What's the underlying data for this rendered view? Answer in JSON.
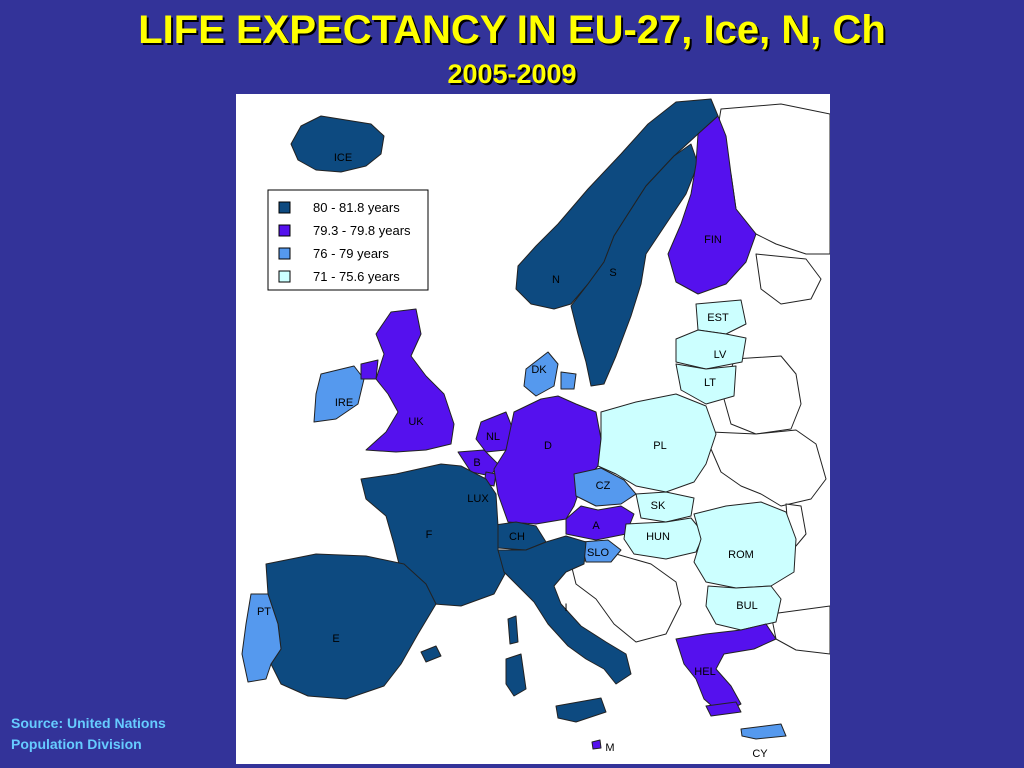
{
  "title": "LIFE EXPECTANCY IN EU-27, Ice, N, Ch",
  "subtitle": "2005-2009",
  "source": {
    "line1": "Source: United Nations",
    "line2": "Population Division"
  },
  "colors": {
    "background": "#333399",
    "title": "#ffff00",
    "source": "#66ccff",
    "ocean": "#ffffff",
    "no_data": "#ffffff",
    "border": "#222222"
  },
  "legend": [
    {
      "label": "80  -  81.8 years",
      "color": "#0d4a80"
    },
    {
      "label": "79.3 - 79.8 years",
      "color": "#5511ee"
    },
    {
      "label": "76 - 79 years",
      "color": "#5599ee"
    },
    {
      "label": "71  - 75.6 years",
      "color": "#ccffff"
    }
  ],
  "countries": [
    {
      "code": "ICE",
      "class": 0
    },
    {
      "code": "N",
      "class": 0
    },
    {
      "code": "S",
      "class": 0
    },
    {
      "code": "FIN",
      "class": 1
    },
    {
      "code": "EST",
      "class": 3
    },
    {
      "code": "LV",
      "class": 3
    },
    {
      "code": "LT",
      "class": 3
    },
    {
      "code": "DK",
      "class": 2
    },
    {
      "code": "IRE",
      "class": 2
    },
    {
      "code": "UK",
      "class": 1
    },
    {
      "code": "NL",
      "class": 1
    },
    {
      "code": "B",
      "class": 1
    },
    {
      "code": "LUX",
      "class": 1
    },
    {
      "code": "D",
      "class": 1
    },
    {
      "code": "PL",
      "class": 3
    },
    {
      "code": "CZ",
      "class": 2
    },
    {
      "code": "SK",
      "class": 3
    },
    {
      "code": "A",
      "class": 1
    },
    {
      "code": "CH",
      "class": 0
    },
    {
      "code": "SLO",
      "class": 2
    },
    {
      "code": "HUN",
      "class": 3
    },
    {
      "code": "ROM",
      "class": 3
    },
    {
      "code": "BUL",
      "class": 3
    },
    {
      "code": "F",
      "class": 0
    },
    {
      "code": "E",
      "class": 0
    },
    {
      "code": "PT",
      "class": 2
    },
    {
      "code": "I",
      "class": 0
    },
    {
      "code": "HEL",
      "class": 1
    },
    {
      "code": "CY",
      "class": 2
    },
    {
      "code": "M",
      "class": 1
    }
  ]
}
